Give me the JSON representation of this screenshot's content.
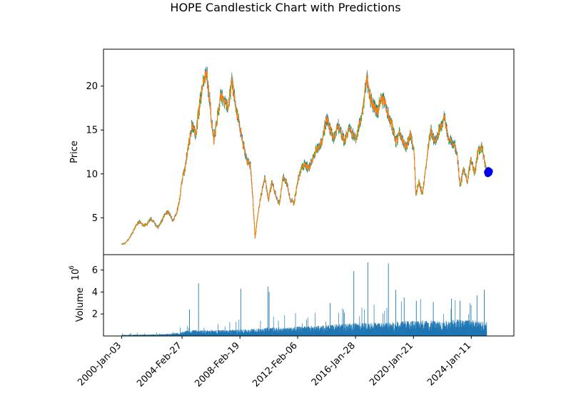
{
  "chart_data": [
    {
      "type": "candlestick",
      "title": "HOPE Candlestick Chart with Predictions",
      "ylabel": "Price",
      "xlabel": "",
      "ylim": [
        0.8,
        24.2
      ],
      "yticks": [
        5,
        10,
        15,
        20
      ],
      "xlim": [
        "1998-10-05",
        "2026-12-15"
      ],
      "xticks": [
        {
          "date": "2000-01-03",
          "label": "2000-Jan-03"
        },
        {
          "date": "2004-02-27",
          "label": "2004-Feb-27"
        },
        {
          "date": "2008-02-19",
          "label": "2008-Feb-19"
        },
        {
          "date": "2012-02-06",
          "label": "2012-Feb-06"
        },
        {
          "date": "2016-01-28",
          "label": "2016-Jan-28"
        },
        {
          "date": "2020-01-21",
          "label": "2020-Jan-21"
        },
        {
          "date": "2024-01-11",
          "label": "2024-Jan-11"
        }
      ],
      "colors": {
        "body": "#ff7f0e",
        "up_wick": "#2ca02c",
        "down_wick": "#1f77b4",
        "prediction": "#0000ff"
      },
      "close_series": [
        [
          "2000-01-03",
          2.0
        ],
        [
          "2000-04-01",
          2.1
        ],
        [
          "2000-07-01",
          2.6
        ],
        [
          "2000-10-01",
          3.3
        ],
        [
          "2001-01-01",
          4.2
        ],
        [
          "2001-04-01",
          4.6
        ],
        [
          "2001-07-01",
          4.1
        ],
        [
          "2001-10-01",
          4.3
        ],
        [
          "2002-01-01",
          4.9
        ],
        [
          "2002-04-01",
          4.4
        ],
        [
          "2002-07-01",
          3.9
        ],
        [
          "2002-10-01",
          4.6
        ],
        [
          "2003-01-01",
          5.5
        ],
        [
          "2003-04-01",
          5.6
        ],
        [
          "2003-07-01",
          4.6
        ],
        [
          "2003-10-01",
          5.4
        ],
        [
          "2004-01-01",
          7.2
        ],
        [
          "2004-03-01",
          9.6
        ],
        [
          "2004-05-01",
          10.4
        ],
        [
          "2004-08-01",
          13.2
        ],
        [
          "2004-11-01",
          15.6
        ],
        [
          "2005-02-01",
          14.6
        ],
        [
          "2005-05-01",
          17.4
        ],
        [
          "2005-08-01",
          20.6
        ],
        [
          "2005-11-01",
          21.6
        ],
        [
          "2006-02-01",
          17.6
        ],
        [
          "2006-05-01",
          13.8
        ],
        [
          "2006-08-01",
          16.4
        ],
        [
          "2006-11-01",
          19.1
        ],
        [
          "2007-02-01",
          18.2
        ],
        [
          "2007-05-01",
          17.4
        ],
        [
          "2007-08-01",
          20.8
        ],
        [
          "2007-11-01",
          17.6
        ],
        [
          "2008-02-01",
          15.6
        ],
        [
          "2008-05-01",
          13.6
        ],
        [
          "2008-08-01",
          11.6
        ],
        [
          "2008-11-01",
          11.1
        ],
        [
          "2009-01-01",
          7.6
        ],
        [
          "2009-03-01",
          2.6
        ],
        [
          "2009-05-01",
          5.1
        ],
        [
          "2009-08-01",
          7.6
        ],
        [
          "2009-11-01",
          9.6
        ],
        [
          "2010-02-01",
          7.1
        ],
        [
          "2010-05-01",
          9.1
        ],
        [
          "2010-08-01",
          7.6
        ],
        [
          "2010-11-01",
          6.6
        ],
        [
          "2011-02-01",
          9.6
        ],
        [
          "2011-05-01",
          9.1
        ],
        [
          "2011-08-01",
          7.1
        ],
        [
          "2011-11-01",
          6.6
        ],
        [
          "2012-02-01",
          9.1
        ],
        [
          "2012-05-01",
          10.6
        ],
        [
          "2012-08-01",
          11.1
        ],
        [
          "2012-11-01",
          10.6
        ],
        [
          "2013-02-01",
          11.6
        ],
        [
          "2013-05-01",
          12.6
        ],
        [
          "2013-08-01",
          13.1
        ],
        [
          "2013-11-01",
          14.1
        ],
        [
          "2014-02-01",
          16.4
        ],
        [
          "2014-05-01",
          15.1
        ],
        [
          "2014-08-01",
          14.1
        ],
        [
          "2014-11-01",
          15.6
        ],
        [
          "2015-02-01",
          14.6
        ],
        [
          "2015-05-01",
          13.6
        ],
        [
          "2015-08-01",
          15.1
        ],
        [
          "2015-11-01",
          14.6
        ],
        [
          "2016-02-01",
          14.1
        ],
        [
          "2016-05-01",
          15.6
        ],
        [
          "2016-08-01",
          17.6
        ],
        [
          "2016-11-01",
          21.1
        ],
        [
          "2017-02-01",
          18.6
        ],
        [
          "2017-05-01",
          17.6
        ],
        [
          "2017-08-01",
          17.1
        ],
        [
          "2017-11-01",
          18.6
        ],
        [
          "2018-02-01",
          18.1
        ],
        [
          "2018-05-01",
          16.6
        ],
        [
          "2018-08-01",
          15.6
        ],
        [
          "2018-11-01",
          13.6
        ],
        [
          "2019-02-01",
          14.6
        ],
        [
          "2019-05-01",
          13.6
        ],
        [
          "2019-08-01",
          13.1
        ],
        [
          "2019-11-01",
          14.6
        ],
        [
          "2020-02-01",
          12.6
        ],
        [
          "2020-03-20",
          7.6
        ],
        [
          "2020-06-01",
          9.1
        ],
        [
          "2020-09-01",
          7.6
        ],
        [
          "2020-12-01",
          11.1
        ],
        [
          "2021-02-01",
          13.6
        ],
        [
          "2021-04-01",
          15.1
        ],
        [
          "2021-07-01",
          13.6
        ],
        [
          "2021-10-01",
          14.6
        ],
        [
          "2022-01-01",
          15.6
        ],
        [
          "2022-03-01",
          16.6
        ],
        [
          "2022-06-01",
          14.1
        ],
        [
          "2022-09-01",
          13.6
        ],
        [
          "2022-12-01",
          13.1
        ],
        [
          "2023-02-01",
          11.6
        ],
        [
          "2023-04-01",
          8.6
        ],
        [
          "2023-07-01",
          10.6
        ],
        [
          "2023-10-01",
          9.1
        ],
        [
          "2024-01-01",
          11.6
        ],
        [
          "2024-04-01",
          10.1
        ],
        [
          "2024-07-01",
          12.6
        ],
        [
          "2024-10-01",
          13.1
        ],
        [
          "2024-12-15",
          11.1
        ],
        [
          "2025-02-01",
          10.1
        ]
      ],
      "predictions": [
        [
          "2025-02-15",
          10.2
        ],
        [
          "2025-03-01",
          10.0
        ],
        [
          "2025-03-15",
          10.4
        ],
        [
          "2025-04-01",
          10.1
        ],
        [
          "2025-04-15",
          10.3
        ]
      ]
    },
    {
      "type": "bar",
      "ylabel": "Volume",
      "offset_label_base": "10",
      "offset_label_exponent": "6",
      "ylim": [
        0,
        7.4
      ],
      "yticks": [
        2,
        4,
        6
      ],
      "color": "#1f77b4",
      "volume_series_millions": [
        [
          "2000-01-03",
          0.08
        ],
        [
          "2001-01-01",
          0.1
        ],
        [
          "2002-01-01",
          0.12
        ],
        [
          "2003-01-01",
          0.15
        ],
        [
          "2004-01-01",
          0.25
        ],
        [
          "2004-06-01",
          0.4
        ],
        [
          "2005-01-01",
          0.45
        ],
        [
          "2006-01-01",
          0.45
        ],
        [
          "2007-01-01",
          0.45
        ],
        [
          "2008-01-01",
          0.5
        ],
        [
          "2009-01-01",
          0.55
        ],
        [
          "2010-01-01",
          0.65
        ],
        [
          "2011-01-01",
          0.65
        ],
        [
          "2012-01-01",
          0.7
        ],
        [
          "2013-01-01",
          0.75
        ],
        [
          "2014-01-01",
          0.8
        ],
        [
          "2015-01-01",
          0.9
        ],
        [
          "2016-01-01",
          1.0
        ],
        [
          "2017-01-01",
          1.0
        ],
        [
          "2018-01-01",
          1.0
        ],
        [
          "2019-01-01",
          1.1
        ],
        [
          "2020-01-01",
          1.2
        ],
        [
          "2021-01-01",
          1.2
        ],
        [
          "2022-01-01",
          1.1
        ],
        [
          "2023-01-01",
          1.3
        ],
        [
          "2024-01-01",
          1.2
        ],
        [
          "2025-02-01",
          1.1
        ]
      ],
      "volume_spikes_millions": [
        [
          "2004-09-01",
          2.4
        ],
        [
          "2005-04-15",
          4.8
        ],
        [
          "2008-03-10",
          4.3
        ],
        [
          "2010-01-20",
          4.5
        ],
        [
          "2010-02-20",
          4.0
        ],
        [
          "2014-05-01",
          3.0
        ],
        [
          "2015-12-15",
          5.9
        ],
        [
          "2016-12-01",
          6.7
        ],
        [
          "2018-05-01",
          6.6
        ],
        [
          "2018-11-01",
          4.2
        ],
        [
          "2019-06-01",
          3.5
        ],
        [
          "2020-04-01",
          3.2
        ],
        [
          "2021-06-01",
          3.1
        ],
        [
          "2022-09-01",
          3.4
        ],
        [
          "2023-04-01",
          3.2
        ],
        [
          "2024-06-01",
          3.7
        ],
        [
          "2024-12-01",
          4.2
        ]
      ]
    }
  ]
}
